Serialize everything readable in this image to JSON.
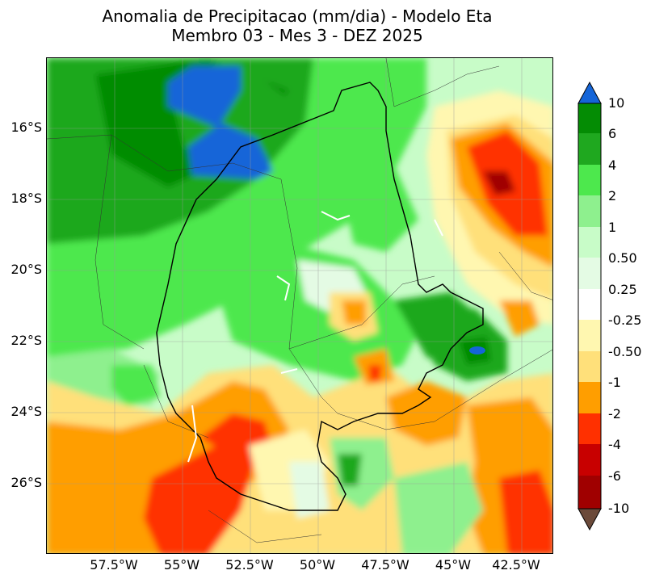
{
  "title_line1": "Anomalia de Precipitacao (mm/dia) - Modelo Eta",
  "title_line2": "Membro 03 - Mes 3 - DEZ 2025",
  "lat_labels": [
    "16°S",
    "18°S",
    "20°S",
    "22°S",
    "24°S",
    "26°S"
  ],
  "lon_labels": [
    "57.5°W",
    "55°W",
    "52.5°W",
    "50°W",
    "47.5°W",
    "45°W",
    "42.5°W"
  ],
  "colorbar": {
    "labels": [
      "10",
      "6",
      "4",
      "2",
      "1",
      "0.50",
      "0.25",
      "-0.25",
      "-0.50",
      "-1",
      "-2",
      "-4",
      "-6",
      "-10"
    ],
    "colors_top_to_bottom": [
      "#1565d8",
      "#048c04",
      "#1fa81f",
      "#4de84d",
      "#8ef08e",
      "#c8fcc8",
      "#e4fbe4",
      "#ffffff",
      "#fff7b0",
      "#ffe07a",
      "#ff9e00",
      "#ff3000",
      "#c80000",
      "#a00000",
      "#6b4a3a"
    ]
  }
}
